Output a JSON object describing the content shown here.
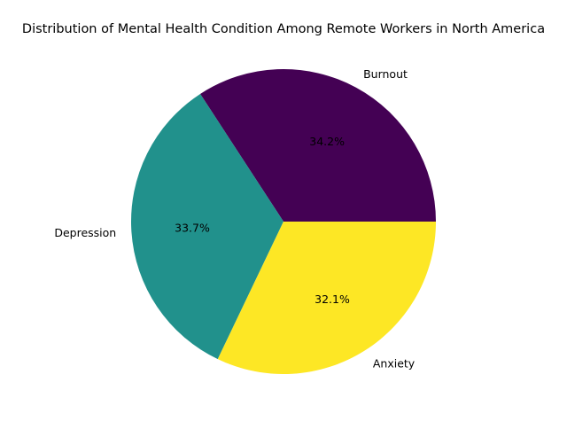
{
  "chart_data": {
    "type": "pie",
    "title": "Distribution of Mental Health Condition Among Remote Workers in North America",
    "categories": [
      "Burnout",
      "Depression",
      "Anxiety"
    ],
    "values": [
      34.2,
      33.7,
      32.1
    ],
    "percent_labels": [
      "34.2%",
      "33.7%",
      "32.1%"
    ],
    "colors": [
      "#440154",
      "#21918c",
      "#fde725"
    ],
    "start_angle_deg": 0,
    "direction": "counterclockwise",
    "legend": "none"
  }
}
